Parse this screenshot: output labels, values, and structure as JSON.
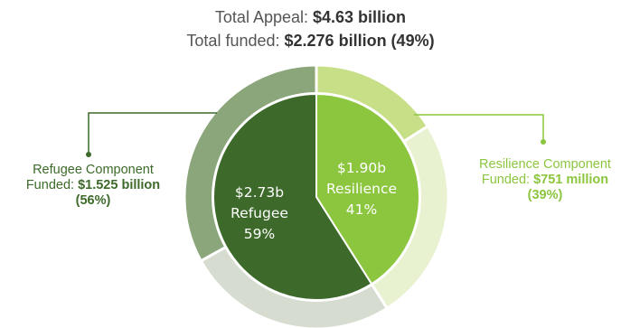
{
  "header": {
    "appeal_label": "Total Appeal:",
    "appeal_value": "$4.63 billion",
    "funded_label": "Total funded:",
    "funded_value": "$2.276 billion (49%)"
  },
  "refugee_callout": {
    "line1": "Refugee Component",
    "funded_label": "Funded:",
    "funded_value": "$1.525 billion",
    "funded_pct": "(56%)"
  },
  "resilience_callout": {
    "line1": "Resilience Component",
    "funded_label": "Funded:",
    "funded_value": "$751 million",
    "funded_pct": "(39%)"
  },
  "colors": {
    "refugee": "#3d6a2a",
    "refugee_funded": "#8ba67a",
    "refugee_unfunded": "#d6ddd0",
    "resilience": "#8cc63f",
    "resilience_funded": "#c7df86",
    "resilience_unfunded": "#e8f1d0"
  },
  "chart_data": {
    "type": "pie",
    "inner": {
      "slices": [
        {
          "amount": "$1.90b",
          "label": "Resilience",
          "pct_text": "41%",
          "value": 41
        },
        {
          "amount": "$2.73b",
          "label": "Refugee",
          "pct_text": "59%",
          "value": 59
        }
      ]
    },
    "outer": {
      "segments": [
        {
          "component": "Resilience",
          "status": "funded",
          "fraction_of_component": 0.39
        },
        {
          "component": "Resilience",
          "status": "unfunded",
          "fraction_of_component": 0.61
        },
        {
          "component": "Refugee",
          "status": "unfunded",
          "fraction_of_component": 0.44
        },
        {
          "component": "Refugee",
          "status": "funded",
          "fraction_of_component": 0.56
        }
      ]
    }
  }
}
